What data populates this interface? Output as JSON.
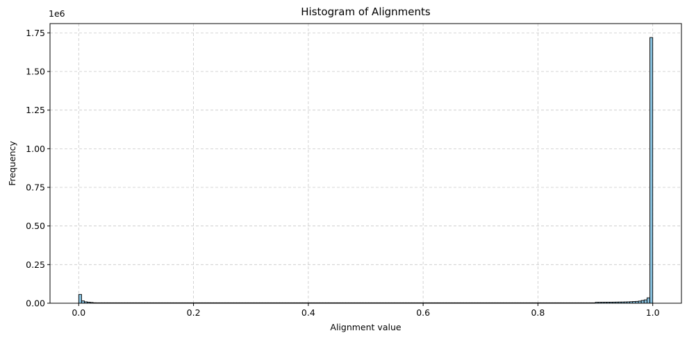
{
  "chart_data": {
    "type": "bar",
    "title": "Histogram of Alignments",
    "xlabel": "Alignment value",
    "ylabel": "Frequency",
    "y_offset_label": "1e6",
    "xlim": [
      -0.05,
      1.05
    ],
    "ylim": [
      0,
      1810000
    ],
    "xticks": [
      0.0,
      0.2,
      0.4,
      0.6,
      0.8,
      1.0
    ],
    "xtick_labels": [
      "0.0",
      "0.2",
      "0.4",
      "0.6",
      "0.8",
      "1.0"
    ],
    "yticks": [
      0,
      250000,
      500000,
      750000,
      1000000,
      1250000,
      1500000,
      1750000
    ],
    "ytick_labels": [
      "0.00",
      "0.25",
      "0.50",
      "0.75",
      "1.00",
      "1.25",
      "1.50",
      "1.75"
    ],
    "grid": true,
    "bar_color": "#87bfdc",
    "edge_color": "#000000",
    "bins": {
      "start": 0.0,
      "width": 0.005,
      "count": 200,
      "values": [
        57000,
        15000,
        9000,
        7000,
        5000,
        3000,
        2000,
        1500,
        1200,
        1000,
        900,
        800,
        700,
        650,
        600,
        550,
        500,
        480,
        460,
        440,
        420,
        400,
        390,
        380,
        370,
        360,
        350,
        340,
        330,
        320,
        310,
        300,
        300,
        300,
        300,
        300,
        300,
        300,
        300,
        300,
        300,
        300,
        300,
        300,
        300,
        300,
        300,
        300,
        300,
        300,
        300,
        300,
        300,
        300,
        300,
        300,
        300,
        300,
        300,
        300,
        300,
        300,
        300,
        300,
        300,
        300,
        300,
        300,
        300,
        300,
        300,
        300,
        300,
        300,
        300,
        300,
        300,
        300,
        300,
        300,
        300,
        300,
        300,
        300,
        300,
        300,
        300,
        300,
        300,
        300,
        300,
        300,
        300,
        300,
        300,
        300,
        300,
        300,
        300,
        300,
        300,
        300,
        300,
        300,
        300,
        300,
        300,
        300,
        300,
        300,
        300,
        300,
        300,
        300,
        300,
        300,
        300,
        300,
        300,
        300,
        300,
        300,
        300,
        300,
        300,
        300,
        300,
        300,
        300,
        300,
        300,
        300,
        300,
        300,
        300,
        300,
        300,
        300,
        300,
        300,
        300,
        300,
        300,
        300,
        300,
        300,
        300,
        300,
        300,
        300,
        300,
        300,
        300,
        300,
        300,
        300,
        300,
        300,
        300,
        300,
        320,
        340,
        360,
        380,
        400,
        420,
        440,
        460,
        480,
        500,
        520,
        540,
        560,
        600,
        700,
        800,
        900,
        1000,
        1200,
        1500,
        6000,
        6200,
        6400,
        6600,
        6800,
        7000,
        7200,
        7500,
        7800,
        8000,
        8500,
        9000,
        10000,
        11000,
        12000,
        14000,
        18000,
        22000,
        35000,
        1720000
      ]
    }
  }
}
